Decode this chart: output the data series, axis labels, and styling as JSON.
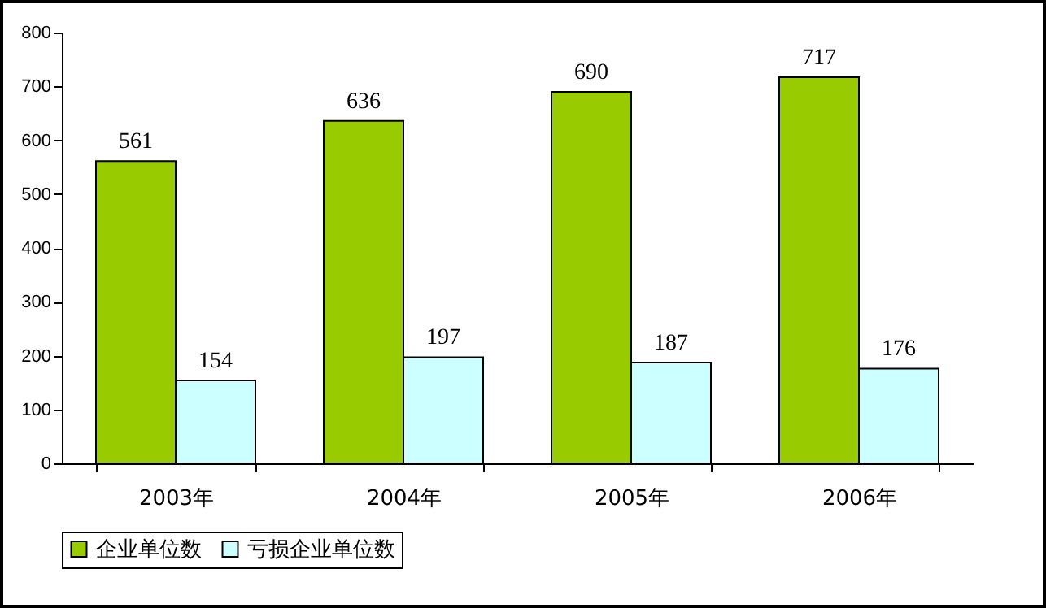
{
  "chart_data": {
    "type": "bar",
    "categories": [
      "2003年",
      "2004年",
      "2005年",
      "2006年"
    ],
    "series": [
      {
        "name": "企业单位数",
        "color": "#99cc00",
        "values": [
          561,
          636,
          690,
          717
        ]
      },
      {
        "name": "亏损企业单位数",
        "color": "#ccffff",
        "values": [
          154,
          197,
          187,
          176
        ]
      }
    ],
    "ylim": [
      0,
      800
    ],
    "yticks": [
      0,
      100,
      200,
      300,
      400,
      500,
      600,
      700,
      800
    ],
    "grid": false,
    "legend": "bottom",
    "data_labels": true
  }
}
